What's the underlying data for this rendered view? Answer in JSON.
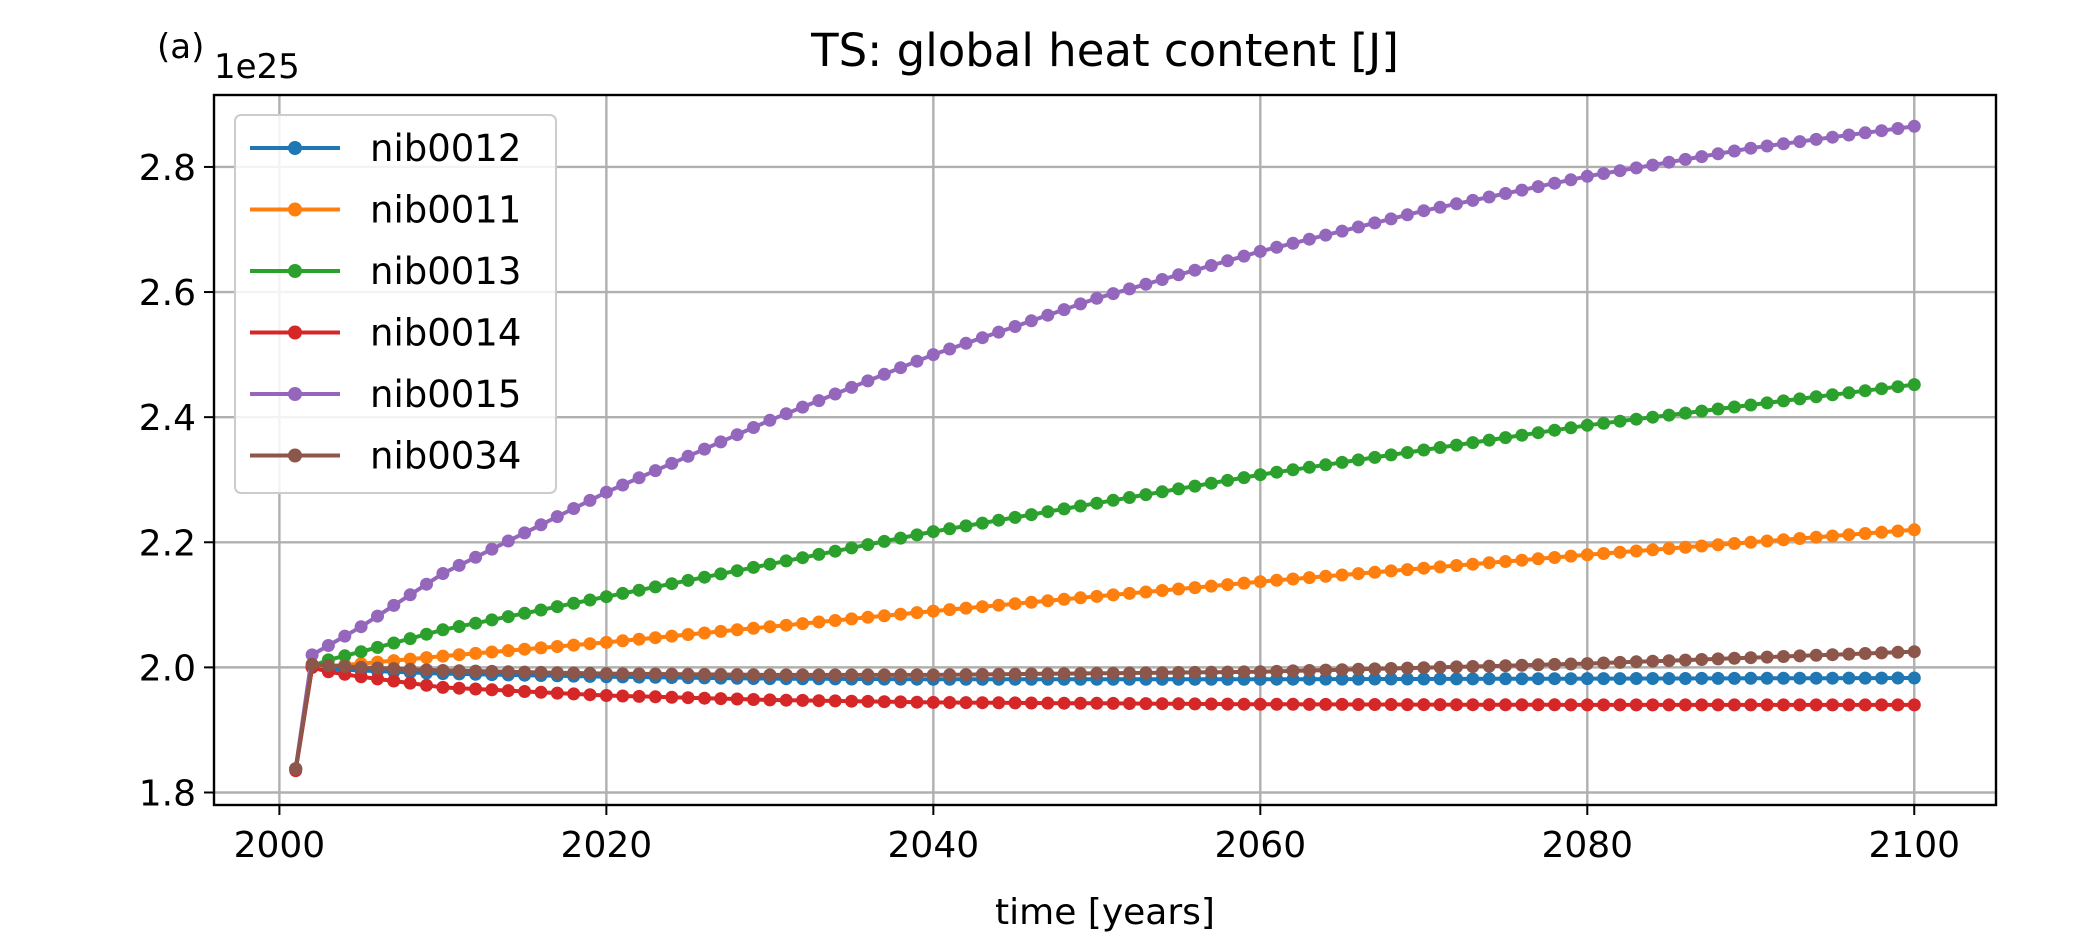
{
  "panel_label": "(a)",
  "chart_data": {
    "type": "line",
    "title": "TS: global heat content [J]",
    "xlabel": "time [years]",
    "ylabel": "",
    "y_exponent_label": "1e25",
    "xlim": [
      1996,
      2105
    ],
    "ylim": [
      1.78,
      2.915
    ],
    "x_ticks": [
      2000,
      2020,
      2040,
      2060,
      2080,
      2100
    ],
    "x_tick_labels": [
      "2000",
      "2020",
      "2040",
      "2060",
      "2080",
      "2100"
    ],
    "y_ticks": [
      1.8,
      2.0,
      2.2,
      2.4,
      2.6,
      2.8
    ],
    "y_tick_labels": [
      "1.8",
      "2.0",
      "2.2",
      "2.4",
      "2.6",
      "2.8"
    ],
    "grid": true,
    "legend_position": "upper-left",
    "marker": "circle",
    "x_start": 2001,
    "x_end": 2100,
    "x_step": 1,
    "series": [
      {
        "name": "nib0012",
        "color": "#1f77b4",
        "values_at": {
          "2001": 1.838,
          "2002": 2.0,
          "2003": 1.998,
          "2005": 1.995,
          "2010": 1.99,
          "2020": 1.985,
          "2030": 1.982,
          "2040": 1.981,
          "2060": 1.981,
          "2080": 1.982,
          "2100": 1.983
        }
      },
      {
        "name": "nib0011",
        "color": "#ff7f0e",
        "values_at": {
          "2001": 1.838,
          "2002": 2.0,
          "2003": 2.002,
          "2005": 2.006,
          "2010": 2.018,
          "2020": 2.04,
          "2030": 2.065,
          "2040": 2.09,
          "2060": 2.137,
          "2080": 2.18,
          "2100": 2.22
        }
      },
      {
        "name": "nib0013",
        "color": "#2ca02c",
        "values_at": {
          "2001": 1.838,
          "2002": 2.002,
          "2003": 2.012,
          "2005": 2.025,
          "2010": 2.06,
          "2020": 2.113,
          "2030": 2.165,
          "2040": 2.217,
          "2060": 2.308,
          "2080": 2.387,
          "2100": 2.452
        }
      },
      {
        "name": "nib0014",
        "color": "#d62728",
        "values_at": {
          "2001": 1.835,
          "2002": 2.0,
          "2003": 1.993,
          "2005": 1.985,
          "2010": 1.968,
          "2020": 1.955,
          "2030": 1.948,
          "2040": 1.944,
          "2060": 1.941,
          "2080": 1.94,
          "2100": 1.94
        }
      },
      {
        "name": "nib0015",
        "color": "#9467bd",
        "values_at": {
          "2001": 1.838,
          "2002": 2.02,
          "2003": 2.035,
          "2005": 2.065,
          "2010": 2.15,
          "2020": 2.28,
          "2030": 2.395,
          "2040": 2.5,
          "2050": 2.59,
          "2060": 2.665,
          "2070": 2.73,
          "2080": 2.785,
          "2090": 2.83,
          "2100": 2.865
        }
      },
      {
        "name": "nib0034",
        "color": "#8c564b",
        "values_at": {
          "2001": 1.838,
          "2002": 2.005,
          "2003": 2.003,
          "2005": 2.0,
          "2010": 1.995,
          "2020": 1.99,
          "2030": 1.988,
          "2040": 1.988,
          "2060": 1.993,
          "2080": 2.006,
          "2100": 2.025
        }
      }
    ]
  }
}
